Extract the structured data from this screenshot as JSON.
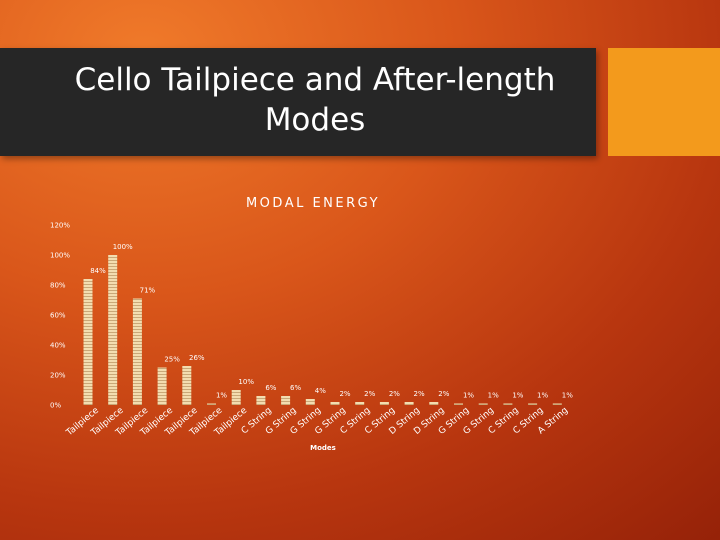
{
  "slide": {
    "title_line1": "Cello Tailpiece and After-length",
    "title_line2": "Modes"
  },
  "colors": {
    "bar": "#f3ddb0",
    "bar_stripe": "#c9a878",
    "title_band": "#262626",
    "accent": "#f39a1c"
  },
  "chart_data": {
    "type": "bar",
    "title": "MODAL ENERGY",
    "xlabel": "Modes",
    "ylabel": "",
    "ylim": [
      0,
      120
    ],
    "yticks": [
      0,
      20,
      40,
      60,
      80,
      100,
      120
    ],
    "ytick_labels": [
      "0%",
      "20%",
      "40%",
      "60%",
      "80%",
      "100%",
      "120%"
    ],
    "grid": false,
    "legend": "none",
    "categories": [
      "Tailpiece",
      "Tailpiece",
      "Tailpiece",
      "Tailpiece",
      "Tailpiece",
      "Tailpiece",
      "Tailpiece",
      "C String",
      "G String",
      "G String",
      "G String",
      "C String",
      "C String",
      "D String",
      "D String",
      "G String",
      "G String",
      "C String",
      "C String",
      "A String"
    ],
    "values": [
      84,
      100,
      71,
      25,
      26,
      1,
      10,
      6,
      6,
      4,
      2,
      2,
      2,
      2,
      2,
      1,
      1,
      1,
      1,
      1
    ],
    "data_labels": [
      "84%",
      "100%",
      "71%",
      "25%",
      "26%",
      "1%",
      "10%",
      "6%",
      "6%",
      "4%",
      "2%",
      "2%",
      "2%",
      "2%",
      "2%",
      "1%",
      "1%",
      "1%",
      "1%",
      "1%"
    ]
  }
}
